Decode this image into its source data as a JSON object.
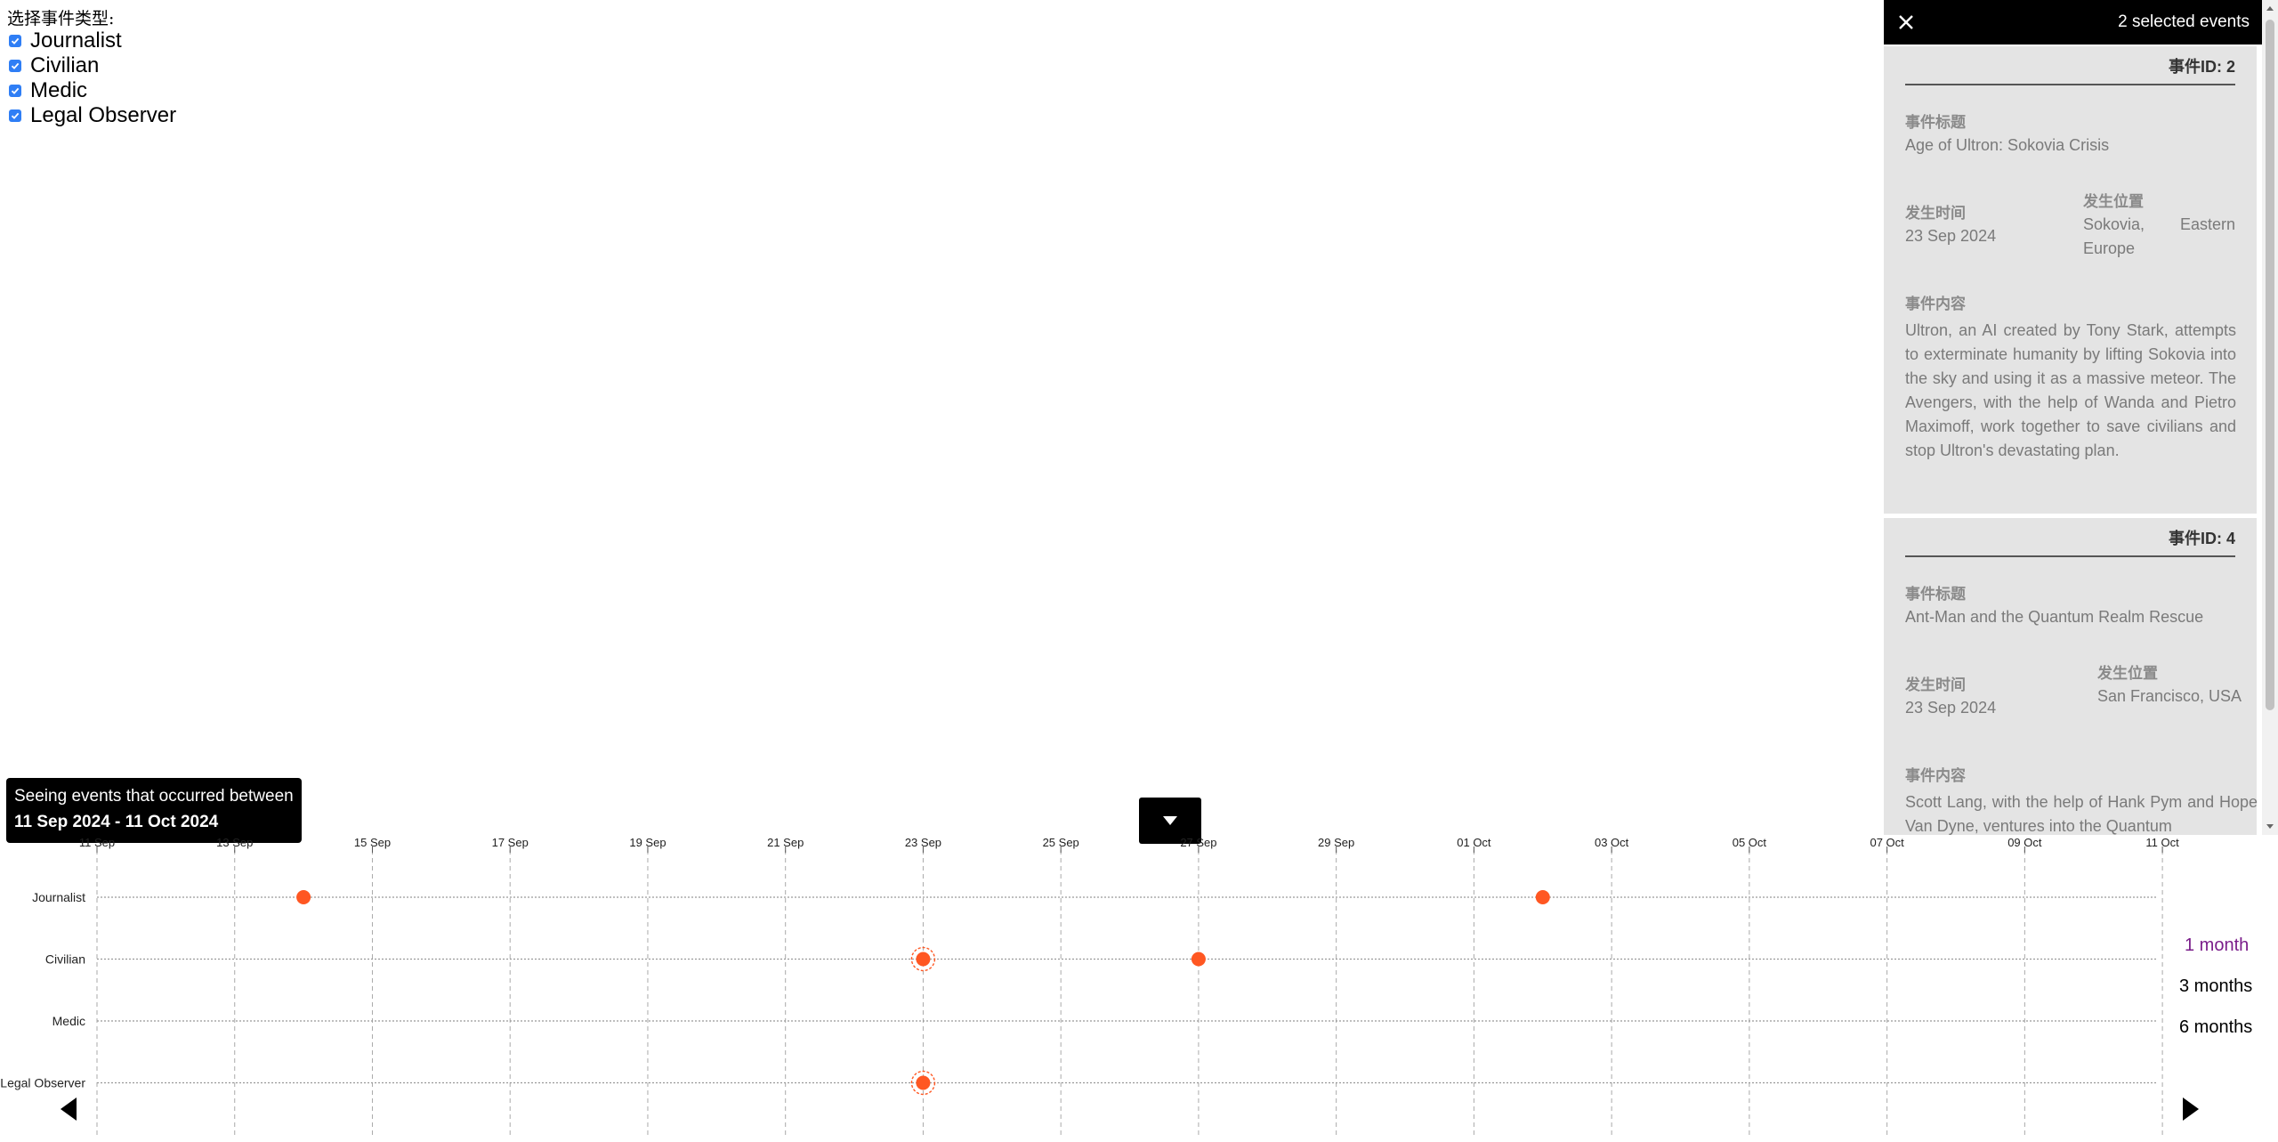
{
  "filter": {
    "title": "选择事件类型:",
    "options": [
      {
        "label": "Journalist",
        "checked": true
      },
      {
        "label": "Civilian",
        "checked": true
      },
      {
        "label": "Medic",
        "checked": true
      },
      {
        "label": "Legal Observer",
        "checked": true
      }
    ]
  },
  "side_panel": {
    "selected_count": "2 selected events",
    "labels": {
      "title": "事件标题",
      "time": "发生时间",
      "location": "发生位置",
      "content": "事件内容"
    },
    "events": [
      {
        "id_label": "事件ID: 2",
        "title": "Age of Ultron: Sokovia Crisis",
        "date": "23 Sep 2024",
        "location": "Sokovia, Eastern Europe",
        "content": "Ultron, an AI created by Tony Stark, attempts to exterminate humanity by lifting Sokovia into the sky and using it as a massive meteor. The Avengers, with the help of Wanda and Pietro Maximoff, work together to save civilians and stop Ultron's devastating plan."
      },
      {
        "id_label": "事件ID: 4",
        "title": "Ant-Man and the Quantum Realm Rescue",
        "date": "23 Sep 2024",
        "location": "San Francisco, USA",
        "content": "Scott Lang, with the help of Hank Pym and Hope Van Dyne, ventures into the Quantum"
      }
    ]
  },
  "range_label": {
    "line1": "Seeing events that occurred between",
    "line2": "11 Sep 2024 - 11 Oct 2024"
  },
  "timeline": {
    "date_ticks": [
      "11 Sep",
      "13 Sep",
      "15 Sep",
      "17 Sep",
      "19 Sep",
      "21 Sep",
      "23 Sep",
      "25 Sep",
      "27 Sep",
      "29 Sep",
      "01 Oct",
      "03 Oct",
      "05 Oct",
      "07 Oct",
      "09 Oct",
      "11 Oct"
    ],
    "rows": [
      "Journalist",
      "Civilian",
      "Medic",
      "Legal Observer"
    ],
    "events": [
      {
        "row": "Journalist",
        "day": 3,
        "selected": false
      },
      {
        "row": "Journalist",
        "day": 21,
        "selected": false
      },
      {
        "row": "Civilian",
        "day": 12,
        "selected": true
      },
      {
        "row": "Civilian",
        "day": 16,
        "selected": false
      },
      {
        "row": "Legal Observer",
        "day": 12,
        "selected": true
      }
    ],
    "event_color": "#ff5722",
    "zoom_options": [
      {
        "label": "1 month",
        "active": true
      },
      {
        "label": "3 months",
        "active": false
      },
      {
        "label": "6 months",
        "active": false
      }
    ]
  }
}
